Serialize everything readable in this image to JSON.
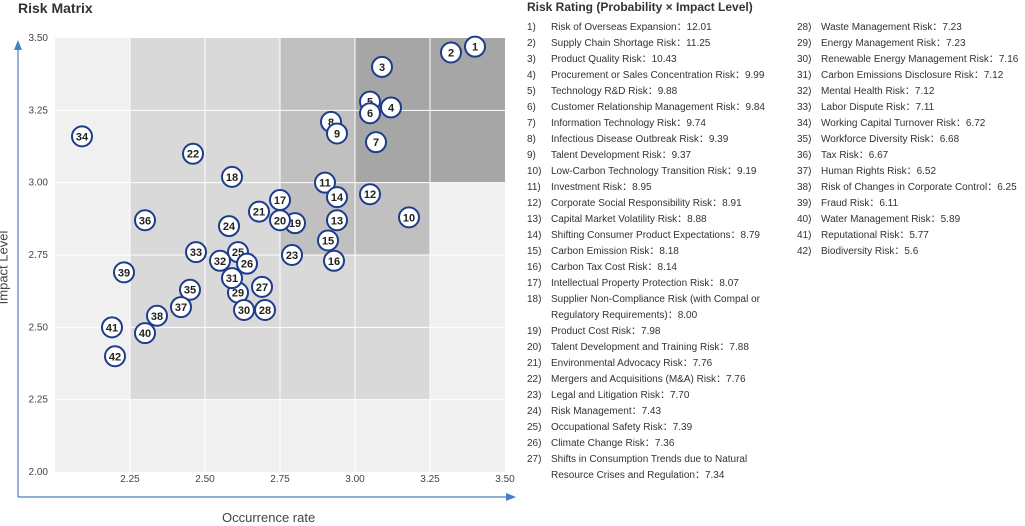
{
  "chart_data": {
    "type": "scatter",
    "title": "Risk Matrix",
    "xlabel": "Occurrence rate",
    "ylabel": "Impact Level",
    "xlim": [
      2.0,
      3.5
    ],
    "ylim": [
      2.0,
      3.5
    ],
    "xticks": [
      "2.25",
      "2.50",
      "2.75",
      "3.00",
      "3.25",
      "3.50"
    ],
    "yticks": [
      "2.00",
      "2.25",
      "2.50",
      "2.75",
      "3.00",
      "3.25",
      "3.50"
    ],
    "background_zones": {
      "light": "#f0f0f0",
      "low": "#d9d9d9",
      "medium": "#c0c0c0",
      "high": "#a6a6a6",
      "gridline": "#ffffff"
    },
    "marker_color": "#1f3c8c",
    "axis_color": "#4a7fc1",
    "points": [
      {
        "label": "1",
        "x": 3.4,
        "y": 3.47
      },
      {
        "label": "2",
        "x": 3.32,
        "y": 3.45
      },
      {
        "label": "3",
        "x": 3.09,
        "y": 3.4
      },
      {
        "label": "4",
        "x": 3.12,
        "y": 3.26
      },
      {
        "label": "5",
        "x": 3.05,
        "y": 3.28
      },
      {
        "label": "6",
        "x": 3.05,
        "y": 3.24
      },
      {
        "label": "7",
        "x": 3.07,
        "y": 3.14
      },
      {
        "label": "8",
        "x": 2.92,
        "y": 3.21
      },
      {
        "label": "9",
        "x": 2.94,
        "y": 3.17
      },
      {
        "label": "10",
        "x": 3.18,
        "y": 2.88
      },
      {
        "label": "11",
        "x": 2.9,
        "y": 3.0
      },
      {
        "label": "12",
        "x": 3.05,
        "y": 2.96
      },
      {
        "label": "13",
        "x": 2.94,
        "y": 2.87
      },
      {
        "label": "14",
        "x": 2.94,
        "y": 2.95
      },
      {
        "label": "15",
        "x": 2.91,
        "y": 2.8
      },
      {
        "label": "16",
        "x": 2.93,
        "y": 2.73
      },
      {
        "label": "17",
        "x": 2.75,
        "y": 2.94
      },
      {
        "label": "18",
        "x": 2.59,
        "y": 3.02
      },
      {
        "label": "19",
        "x": 2.8,
        "y": 2.86
      },
      {
        "label": "20",
        "x": 2.75,
        "y": 2.87
      },
      {
        "label": "21",
        "x": 2.68,
        "y": 2.9
      },
      {
        "label": "22",
        "x": 2.46,
        "y": 3.1
      },
      {
        "label": "23",
        "x": 2.79,
        "y": 2.75
      },
      {
        "label": "24",
        "x": 2.58,
        "y": 2.85
      },
      {
        "label": "25",
        "x": 2.61,
        "y": 2.76
      },
      {
        "label": "26",
        "x": 2.64,
        "y": 2.72
      },
      {
        "label": "27",
        "x": 2.69,
        "y": 2.64
      },
      {
        "label": "28",
        "x": 2.7,
        "y": 2.56
      },
      {
        "label": "29",
        "x": 2.61,
        "y": 2.62
      },
      {
        "label": "30",
        "x": 2.63,
        "y": 2.56
      },
      {
        "label": "31",
        "x": 2.59,
        "y": 2.67
      },
      {
        "label": "32",
        "x": 2.55,
        "y": 2.73
      },
      {
        "label": "33",
        "x": 2.47,
        "y": 2.76
      },
      {
        "label": "34",
        "x": 2.09,
        "y": 3.16
      },
      {
        "label": "35",
        "x": 2.45,
        "y": 2.63
      },
      {
        "label": "36",
        "x": 2.3,
        "y": 2.87
      },
      {
        "label": "37",
        "x": 2.42,
        "y": 2.57
      },
      {
        "label": "38",
        "x": 2.34,
        "y": 2.54
      },
      {
        "label": "39",
        "x": 2.23,
        "y": 2.69
      },
      {
        "label": "40",
        "x": 2.3,
        "y": 2.48
      },
      {
        "label": "41",
        "x": 2.19,
        "y": 2.5
      },
      {
        "label": "42",
        "x": 2.2,
        "y": 2.4
      }
    ],
    "legend_title": "Risk Rating (Probability × Impact Level)",
    "legend_items_col1": [
      {
        "num": "1)",
        "text": "Risk of Overseas Expansion：12.01"
      },
      {
        "num": "2)",
        "text": "Supply Chain Shortage Risk：11.25"
      },
      {
        "num": "3)",
        "text": "Product Quality Risk：10.43"
      },
      {
        "num": "4)",
        "text": "Procurement or Sales Concentration Risk：9.99"
      },
      {
        "num": "5)",
        "text": "Technology R&D Risk：9.88"
      },
      {
        "num": "6)",
        "text": "Customer Relationship Management Risk：9.84"
      },
      {
        "num": "7)",
        "text": "Information Technology Risk：9.74"
      },
      {
        "num": "8)",
        "text": "Infectious Disease Outbreak Risk：9.39"
      },
      {
        "num": "9)",
        "text": "Talent Development Risk：9.37"
      },
      {
        "num": "10)",
        "text": "Low-Carbon Technology Transition Risk：9.19"
      },
      {
        "num": "11)",
        "text": "Investment Risk：8.95"
      },
      {
        "num": "12)",
        "text": "Corporate Social Responsibility Risk：8.91"
      },
      {
        "num": "13)",
        "text": "Capital Market Volatility Risk：8.88"
      },
      {
        "num": "14)",
        "text": "Shifting Consumer Product Expectations：8.79"
      },
      {
        "num": "15)",
        "text": "Carbon Emission Risk：8.18"
      },
      {
        "num": "16)",
        "text": "Carbon Tax Cost Risk：8.14"
      },
      {
        "num": "17)",
        "text": "Intellectual Property Protection Risk：8.07"
      },
      {
        "num": "18)",
        "text": "Supplier Non-Compliance Risk (with Compal or Regulatory Requirements)：8.00"
      },
      {
        "num": "19)",
        "text": "Product Cost Risk：7.98"
      },
      {
        "num": "20)",
        "text": "Talent Development and Training Risk：7.88"
      },
      {
        "num": "21)",
        "text": "Environmental Advocacy Risk：7.76"
      },
      {
        "num": "22)",
        "text": "Mergers and Acquisitions (M&A) Risk：7.76"
      },
      {
        "num": "23)",
        "text": "Legal and Litigation Risk：7.70"
      },
      {
        "num": "24)",
        "text": "Risk Management：7.43"
      },
      {
        "num": "25)",
        "text": "Occupational Safety Risk：7.39"
      },
      {
        "num": "26)",
        "text": "Climate Change Risk：7.36"
      },
      {
        "num": "27)",
        "text": "Shifts in Consumption Trends due to Natural Resource Crises and Regulation：7.34"
      }
    ],
    "legend_items_col2": [
      {
        "num": "28)",
        "text": "Waste Management Risk：7.23"
      },
      {
        "num": "29)",
        "text": "Energy Management Risk：7.23"
      },
      {
        "num": "30)",
        "text": "Renewable Energy Management Risk：7.16"
      },
      {
        "num": "31)",
        "text": "Carbon Emissions Disclosure Risk：7.12"
      },
      {
        "num": "32)",
        "text": "Mental Health Risk：7.12"
      },
      {
        "num": "33)",
        "text": "Labor Dispute Risk：7.11"
      },
      {
        "num": "34)",
        "text": "Working Capital Turnover Risk：6.72"
      },
      {
        "num": "35)",
        "text": "Workforce Diversity Risk：6.68"
      },
      {
        "num": "36)",
        "text": "Tax Risk：6.67"
      },
      {
        "num": "37)",
        "text": "Human Rights Risk：6.52"
      },
      {
        "num": "38)",
        "text": "Risk of Changes in Corporate Control：6.25"
      },
      {
        "num": "39)",
        "text": "Fraud Risk：6.11"
      },
      {
        "num": "40)",
        "text": "Water Management Risk：5.89"
      },
      {
        "num": "41)",
        "text": "Reputational Risk：5.77"
      },
      {
        "num": "42)",
        "text": "Biodiversity Risk：5.6"
      }
    ]
  }
}
